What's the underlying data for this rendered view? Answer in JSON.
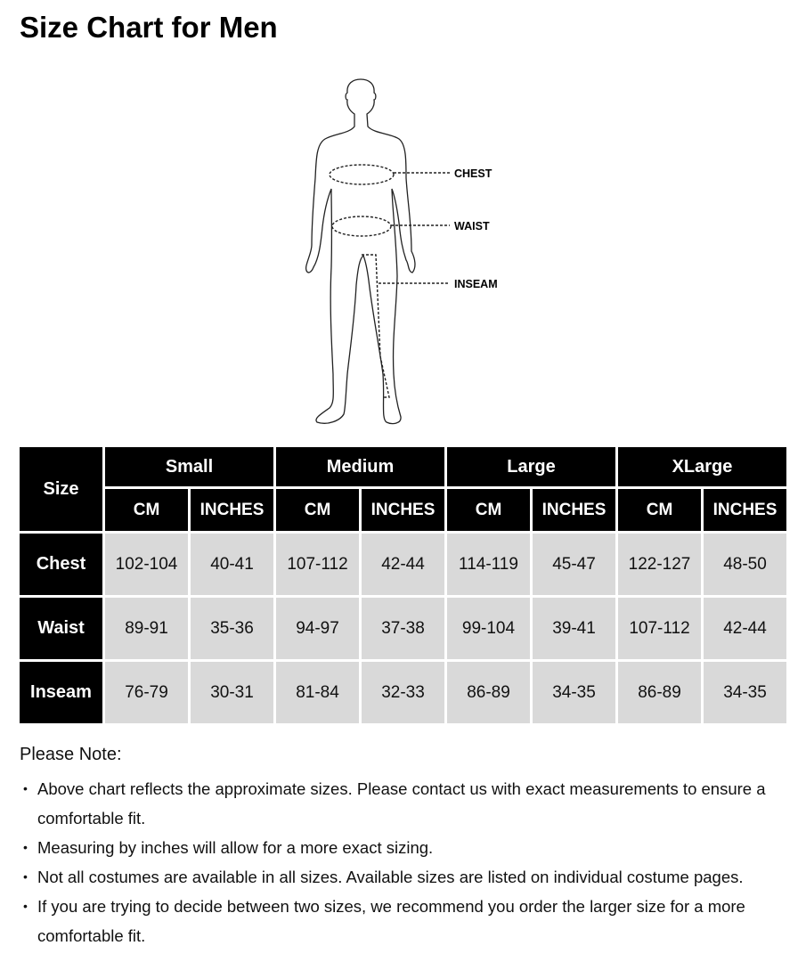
{
  "title": "Size Chart for Men",
  "figure": {
    "labels": {
      "chest": "CHEST",
      "waist": "WAIST",
      "inseam": "INSEAM"
    }
  },
  "table": {
    "corner": "Size",
    "groups": [
      "Small",
      "Medium",
      "Large",
      "XLarge"
    ],
    "units": [
      "CM",
      "INCHES"
    ],
    "rows": [
      {
        "label": "Chest",
        "values": [
          "102-104",
          "40-41",
          "107-112",
          "42-44",
          "114-119",
          "45-47",
          "122-127",
          "48-50"
        ]
      },
      {
        "label": "Waist",
        "values": [
          "89-91",
          "35-36",
          "94-97",
          "37-38",
          "99-104",
          "39-41",
          "107-112",
          "42-44"
        ]
      },
      {
        "label": "Inseam",
        "values": [
          "76-79",
          "30-31",
          "81-84",
          "32-33",
          "86-89",
          "34-35",
          "86-89",
          "34-35"
        ]
      }
    ]
  },
  "notes": {
    "title": "Please Note:",
    "items": [
      "Above chart reflects the approximate sizes. Please contact us with exact measurements to ensure a comfortable fit.",
      "Measuring by inches will allow for a more exact sizing.",
      "Not all costumes are available in all sizes. Available sizes are listed on individual costume pages.",
      "If you are trying to decide between two sizes, we recommend you order the larger size for a more comfortable fit."
    ]
  }
}
